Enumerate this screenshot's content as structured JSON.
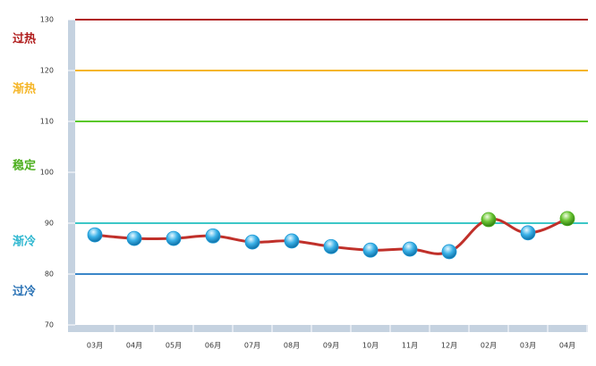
{
  "chart_data": {
    "type": "line",
    "categories": [
      "03月",
      "04月",
      "05月",
      "06月",
      "07月",
      "08月",
      "09月",
      "10月",
      "11月",
      "12月",
      "02月",
      "03月",
      "04月"
    ],
    "series": [
      {
        "color": "#c0302a",
        "values": [
          87.7,
          87.0,
          87.0,
          87.5,
          86.3,
          86.5,
          85.4,
          84.7,
          84.9,
          84.4,
          90.7,
          88.1,
          90.9
        ],
        "marker_colors": [
          "#1e9ad6",
          "#1e9ad6",
          "#1e9ad6",
          "#1e9ad6",
          "#1e9ad6",
          "#1e9ad6",
          "#1e9ad6",
          "#1e9ad6",
          "#1e9ad6",
          "#1e9ad6",
          "#4caf1e",
          "#1e9ad6",
          "#4caf1e"
        ]
      }
    ],
    "ylim": [
      70,
      130
    ],
    "yticks": [
      70,
      80,
      90,
      100,
      110,
      120,
      130
    ],
    "thresholds": [
      {
        "value": 130,
        "color": "#b01c1c"
      },
      {
        "value": 120,
        "color": "#f5b526"
      },
      {
        "value": 110,
        "color": "#5ac82a"
      },
      {
        "value": 90,
        "color": "#3cc7c7"
      },
      {
        "value": 80,
        "color": "#3a86c8"
      }
    ],
    "zones": [
      {
        "label": "过热",
        "color": "#b01c1c"
      },
      {
        "label": "渐热",
        "color": "#f5b526"
      },
      {
        "label": "稳定",
        "color": "#4caf1e"
      },
      {
        "label": "渐冷",
        "color": "#2fb7d0"
      },
      {
        "label": "过冷",
        "color": "#2a72b5"
      }
    ]
  }
}
